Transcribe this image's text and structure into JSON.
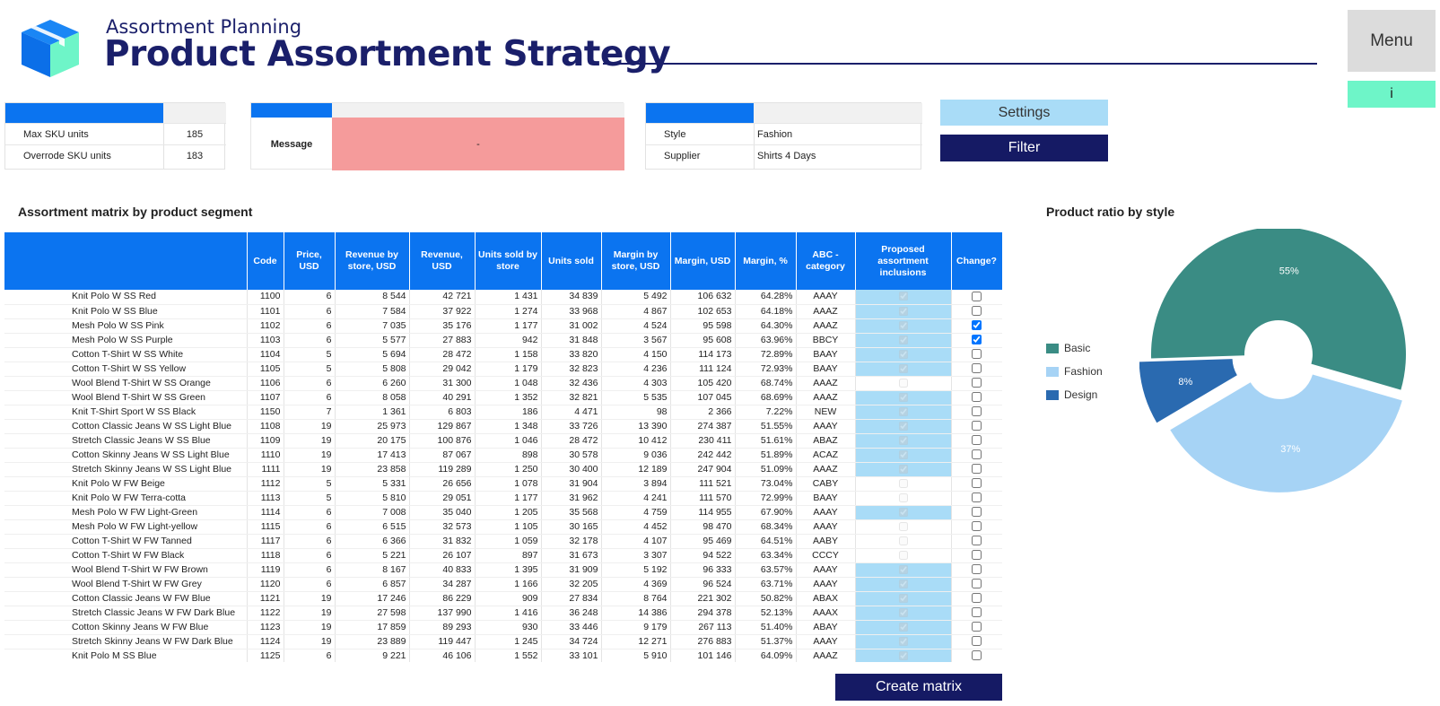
{
  "header": {
    "subtitle": "Assortment Planning",
    "title": "Product Assortment Strategy",
    "menu_label": "Menu",
    "info_label": "i"
  },
  "sku_panel": {
    "rows": [
      {
        "label": "Max SKU units",
        "value": "185"
      },
      {
        "label": "Overrode SKU units",
        "value": "183"
      }
    ]
  },
  "message_panel": {
    "label": "Message",
    "value": "-"
  },
  "filter_panel": {
    "rows": [
      {
        "label": "Style",
        "value": "Fashion"
      },
      {
        "label": "Supplier",
        "value": "Shirts 4 Days"
      }
    ]
  },
  "buttons": {
    "settings": "Settings",
    "filter": "Filter",
    "create_matrix": "Create matrix"
  },
  "matrix": {
    "title": "Assortment matrix by product segment",
    "columns": [
      "",
      "Code",
      "Price, USD",
      "Revenue by store, USD",
      "Revenue, USD",
      "Units sold by store",
      "Units sold",
      "Margin by store, USD",
      "Margin, USD",
      "Margin, %",
      "ABC - category",
      "Proposed assortment inclusions",
      "Change?"
    ],
    "rows": [
      {
        "name": "Knit Polo W SS Red",
        "code": "1100",
        "price": "6",
        "rev_store": "8 544",
        "rev": "42 721",
        "units_store": "1 431",
        "units": "34 839",
        "margin_store": "5 492",
        "margin": "106 632",
        "margin_pct": "64.28%",
        "abc": "AAAY",
        "proposed": true,
        "change": false
      },
      {
        "name": "Knit Polo W SS Blue",
        "code": "1101",
        "price": "6",
        "rev_store": "7 584",
        "rev": "37 922",
        "units_store": "1 274",
        "units": "33 968",
        "margin_store": "4 867",
        "margin": "102 653",
        "margin_pct": "64.18%",
        "abc": "AAAZ",
        "proposed": true,
        "change": false
      },
      {
        "name": "Mesh Polo W SS Pink",
        "code": "1102",
        "price": "6",
        "rev_store": "7 035",
        "rev": "35 176",
        "units_store": "1 177",
        "units": "31 002",
        "margin_store": "4 524",
        "margin": "95 598",
        "margin_pct": "64.30%",
        "abc": "AAAZ",
        "proposed": true,
        "change": true
      },
      {
        "name": "Mesh Polo W SS Purple",
        "code": "1103",
        "price": "6",
        "rev_store": "5 577",
        "rev": "27 883",
        "units_store": "942",
        "units": "31 848",
        "margin_store": "3 567",
        "margin": "95 608",
        "margin_pct": "63.96%",
        "abc": "BBCY",
        "proposed": true,
        "change": true
      },
      {
        "name": "Cotton T-Shirt W SS White",
        "code": "1104",
        "price": "5",
        "rev_store": "5 694",
        "rev": "28 472",
        "units_store": "1 158",
        "units": "33 820",
        "margin_store": "4 150",
        "margin": "114 173",
        "margin_pct": "72.89%",
        "abc": "BAAY",
        "proposed": true,
        "change": false
      },
      {
        "name": "Cotton T-Shirt W SS Yellow",
        "code": "1105",
        "price": "5",
        "rev_store": "5 808",
        "rev": "29 042",
        "units_store": "1 179",
        "units": "32 823",
        "margin_store": "4 236",
        "margin": "111 124",
        "margin_pct": "72.93%",
        "abc": "BAAY",
        "proposed": true,
        "change": false
      },
      {
        "name": "Wool Blend T-Shirt W SS Orange",
        "code": "1106",
        "price": "6",
        "rev_store": "6 260",
        "rev": "31 300",
        "units_store": "1 048",
        "units": "32 436",
        "margin_store": "4 303",
        "margin": "105 420",
        "margin_pct": "68.74%",
        "abc": "AAAZ",
        "proposed": false,
        "change": false
      },
      {
        "name": "Wool Blend T-Shirt W SS Green",
        "code": "1107",
        "price": "6",
        "rev_store": "8 058",
        "rev": "40 291",
        "units_store": "1 352",
        "units": "32 821",
        "margin_store": "5 535",
        "margin": "107 045",
        "margin_pct": "68.69%",
        "abc": "AAAZ",
        "proposed": true,
        "change": false
      },
      {
        "name": "Knit T-Shirt Sport W SS Black",
        "code": "1150",
        "price": "7",
        "rev_store": "1 361",
        "rev": "6 803",
        "units_store": "186",
        "units": "4 471",
        "margin_store": "98",
        "margin": "2 366",
        "margin_pct": "7.22%",
        "abc": "NEW",
        "proposed": true,
        "change": false
      },
      {
        "name": "Cotton Classic Jeans W SS Light Blue",
        "code": "1108",
        "price": "19",
        "rev_store": "25 973",
        "rev": "129 867",
        "units_store": "1 348",
        "units": "33 726",
        "margin_store": "13 390",
        "margin": "274 387",
        "margin_pct": "51.55%",
        "abc": "AAAY",
        "proposed": true,
        "change": false
      },
      {
        "name": "Stretch Classic Jeans W SS Blue",
        "code": "1109",
        "price": "19",
        "rev_store": "20 175",
        "rev": "100 876",
        "units_store": "1 046",
        "units": "28 472",
        "margin_store": "10 412",
        "margin": "230 411",
        "margin_pct": "51.61%",
        "abc": "ABAZ",
        "proposed": true,
        "change": false
      },
      {
        "name": "Cotton Skinny Jeans W SS Light Blue",
        "code": "1110",
        "price": "19",
        "rev_store": "17 413",
        "rev": "87 067",
        "units_store": "898",
        "units": "30 578",
        "margin_store": "9 036",
        "margin": "242 442",
        "margin_pct": "51.89%",
        "abc": "ACAZ",
        "proposed": true,
        "change": false
      },
      {
        "name": "Stretch Skinny Jeans W SS Light Blue",
        "code": "1111",
        "price": "19",
        "rev_store": "23 858",
        "rev": "119 289",
        "units_store": "1 250",
        "units": "30 400",
        "margin_store": "12 189",
        "margin": "247 904",
        "margin_pct": "51.09%",
        "abc": "AAAZ",
        "proposed": true,
        "change": false
      },
      {
        "name": "Knit Polo W FW Beige",
        "code": "1112",
        "price": "5",
        "rev_store": "5 331",
        "rev": "26 656",
        "units_store": "1 078",
        "units": "31 904",
        "margin_store": "3 894",
        "margin": "111 521",
        "margin_pct": "73.04%",
        "abc": "CABY",
        "proposed": false,
        "change": false
      },
      {
        "name": "Knit Polo W FW Terra-cotta",
        "code": "1113",
        "price": "5",
        "rev_store": "5 810",
        "rev": "29 051",
        "units_store": "1 177",
        "units": "31 962",
        "margin_store": "4 241",
        "margin": "111 570",
        "margin_pct": "72.99%",
        "abc": "BAAY",
        "proposed": false,
        "change": false
      },
      {
        "name": "Mesh Polo W FW Light-Green",
        "code": "1114",
        "price": "6",
        "rev_store": "7 008",
        "rev": "35 040",
        "units_store": "1 205",
        "units": "35 568",
        "margin_store": "4 759",
        "margin": "114 955",
        "margin_pct": "67.90%",
        "abc": "AAAY",
        "proposed": true,
        "change": false
      },
      {
        "name": "Mesh Polo W FW Light-yellow",
        "code": "1115",
        "price": "6",
        "rev_store": "6 515",
        "rev": "32 573",
        "units_store": "1 105",
        "units": "30 165",
        "margin_store": "4 452",
        "margin": "98 470",
        "margin_pct": "68.34%",
        "abc": "AAAY",
        "proposed": false,
        "change": false
      },
      {
        "name": "Cotton T-Shirt W FW Tanned",
        "code": "1117",
        "price": "6",
        "rev_store": "6 366",
        "rev": "31 832",
        "units_store": "1 059",
        "units": "32 178",
        "margin_store": "4 107",
        "margin": "95 469",
        "margin_pct": "64.51%",
        "abc": "AABY",
        "proposed": false,
        "change": false
      },
      {
        "name": "Cotton T-Shirt W FW Black",
        "code": "1118",
        "price": "6",
        "rev_store": "5 221",
        "rev": "26 107",
        "units_store": "897",
        "units": "31 673",
        "margin_store": "3 307",
        "margin": "94 522",
        "margin_pct": "63.34%",
        "abc": "CCCY",
        "proposed": false,
        "change": false
      },
      {
        "name": "Wool Blend T-Shirt W FW Brown",
        "code": "1119",
        "price": "6",
        "rev_store": "8 167",
        "rev": "40 833",
        "units_store": "1 395",
        "units": "31 909",
        "margin_store": "5 192",
        "margin": "96 333",
        "margin_pct": "63.57%",
        "abc": "AAAY",
        "proposed": true,
        "change": false
      },
      {
        "name": "Wool Blend T-Shirt W FW Grey",
        "code": "1120",
        "price": "6",
        "rev_store": "6 857",
        "rev": "34 287",
        "units_store": "1 166",
        "units": "32 205",
        "margin_store": "4 369",
        "margin": "96 524",
        "margin_pct": "63.71%",
        "abc": "AAAY",
        "proposed": true,
        "change": false
      },
      {
        "name": "Cotton Classic Jeans W FW Blue",
        "code": "1121",
        "price": "19",
        "rev_store": "17 246",
        "rev": "86 229",
        "units_store": "909",
        "units": "27 834",
        "margin_store": "8 764",
        "margin": "221 302",
        "margin_pct": "50.82%",
        "abc": "ABAX",
        "proposed": true,
        "change": false
      },
      {
        "name": "Stretch Classic Jeans W FW Dark Blue",
        "code": "1122",
        "price": "19",
        "rev_store": "27 598",
        "rev": "137 990",
        "units_store": "1 416",
        "units": "36 248",
        "margin_store": "14 386",
        "margin": "294 378",
        "margin_pct": "52.13%",
        "abc": "AAAX",
        "proposed": true,
        "change": false
      },
      {
        "name": "Cotton Skinny Jeans W FW Blue",
        "code": "1123",
        "price": "19",
        "rev_store": "17 859",
        "rev": "89 293",
        "units_store": "930",
        "units": "33 446",
        "margin_store": "9 179",
        "margin": "267 113",
        "margin_pct": "51.40%",
        "abc": "ABAY",
        "proposed": true,
        "change": false
      },
      {
        "name": "Stretch Skinny Jeans W FW Dark Blue",
        "code": "1124",
        "price": "19",
        "rev_store": "23 889",
        "rev": "119 447",
        "units_store": "1 245",
        "units": "34 724",
        "margin_store": "12 271",
        "margin": "276 883",
        "margin_pct": "51.37%",
        "abc": "AAAY",
        "proposed": true,
        "change": false
      },
      {
        "name": "Knit Polo M SS Blue",
        "code": "1125",
        "price": "6",
        "rev_store": "9 221",
        "rev": "46 106",
        "units_store": "1 552",
        "units": "33 101",
        "margin_store": "5 910",
        "margin": "101 146",
        "margin_pct": "64.09%",
        "abc": "AAAZ",
        "proposed": true,
        "change": false
      }
    ]
  },
  "chart_data": {
    "type": "pie",
    "title": "Product ratio by style",
    "categories": [
      "Basic",
      "Fashion",
      "Design"
    ],
    "values": [
      55,
      37,
      8
    ],
    "labels": [
      "55%",
      "37%",
      "8%"
    ],
    "colors": [
      "#3a8c84",
      "#a6d3f5",
      "#2a6ab0"
    ],
    "donut": true,
    "exploded": true,
    "legend": "left"
  },
  "colors": {
    "accent_blue": "#0b74f0",
    "navy": "#151a64",
    "message_bg": "#f59b9b",
    "proposed_bg": "#a9dcf7",
    "info_green": "#6ef5c8"
  }
}
